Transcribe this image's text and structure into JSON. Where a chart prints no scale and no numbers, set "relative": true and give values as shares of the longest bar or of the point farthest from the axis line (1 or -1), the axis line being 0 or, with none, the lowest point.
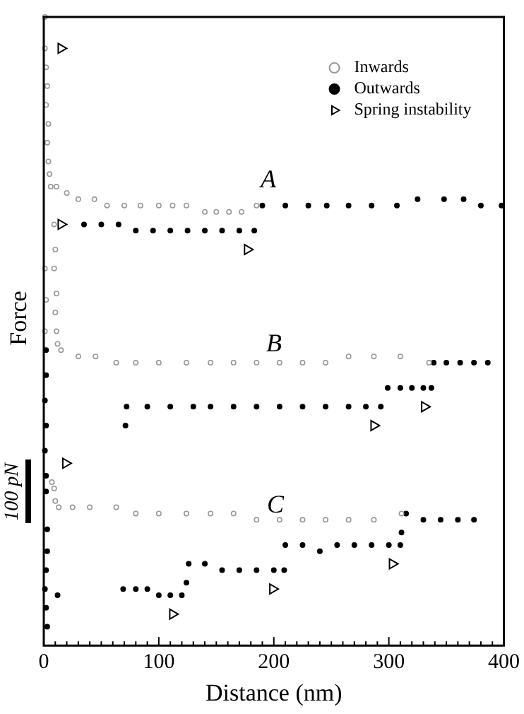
{
  "chart_data": {
    "type": "scatter",
    "xlabel": "Distance (nm)",
    "ylabel": "Force",
    "relative": true,
    "legend": "top right",
    "xlim": [
      0,
      400
    ],
    "xticks": [
      0,
      {
        "value": 10,
        "label": null
      },
      {
        "value": 20,
        "label": null
      },
      {
        "value": 30,
        "label": null
      },
      {
        "value": 40,
        "label": null
      },
      {
        "value": 50,
        "label": null
      },
      {
        "value": 60,
        "label": null
      },
      {
        "value": 70,
        "label": null
      },
      {
        "value": 80,
        "label": null
      },
      {
        "value": 90,
        "label": null
      },
      100,
      {
        "value": 110,
        "label": null
      },
      {
        "value": 120,
        "label": null
      },
      {
        "value": 130,
        "label": null
      },
      {
        "value": 140,
        "label": null
      },
      {
        "value": 150,
        "label": null
      },
      {
        "value": 160,
        "label": null
      },
      {
        "value": 170,
        "label": null
      },
      {
        "value": 180,
        "label": null
      },
      {
        "value": 190,
        "label": null
      },
      200,
      {
        "value": 210,
        "label": null
      },
      {
        "value": 220,
        "label": null
      },
      {
        "value": 230,
        "label": null
      },
      {
        "value": 240,
        "label": null
      },
      {
        "value": 250,
        "label": null
      },
      {
        "value": 260,
        "label": null
      },
      {
        "value": 270,
        "label": null
      },
      {
        "value": 280,
        "label": null
      },
      {
        "value": 290,
        "label": null
      },
      300,
      {
        "value": 310,
        "label": null
      },
      {
        "value": 320,
        "label": null
      },
      {
        "value": 330,
        "label": null
      },
      {
        "value": 340,
        "label": null
      },
      {
        "value": 350,
        "label": null
      },
      {
        "value": 360,
        "label": null
      },
      {
        "value": 370,
        "label": null
      },
      {
        "value": 380,
        "label": null
      },
      {
        "value": 390,
        "label": null
      },
      400
    ],
    "annotations": [
      "A",
      "B",
      "C",
      "100 pN"
    ],
    "series": [
      {
        "name": "Inwards",
        "color": "#999999",
        "marker": "circle",
        "x": [
          1,
          1,
          2,
          3,
          2,
          4,
          3,
          4,
          5,
          6,
          11,
          20,
          30,
          44,
          55,
          70,
          84,
          100,
          112,
          124,
          140,
          150,
          161,
          172,
          185,
          9,
          10,
          9,
          11,
          10,
          11,
          12,
          15,
          30,
          45,
          63,
          80,
          100,
          124,
          145,
          165,
          185,
          205,
          225,
          245,
          265,
          287,
          310,
          335,
          7,
          9,
          10,
          13,
          25,
          40,
          63,
          80,
          100,
          124,
          145,
          165,
          185,
          205,
          225,
          245,
          265,
          287,
          311,
          1,
          2,
          1
        ],
        "values": [
          1.0,
          0.95,
          0.92,
          0.89,
          0.86,
          0.83,
          0.8,
          0.77,
          0.75,
          0.73,
          0.73,
          0.72,
          0.71,
          0.71,
          0.7,
          0.7,
          0.7,
          0.7,
          0.7,
          0.7,
          0.69,
          0.69,
          0.69,
          0.69,
          0.7,
          0.67,
          0.63,
          0.6,
          0.56,
          0.53,
          0.5,
          0.48,
          0.47,
          0.46,
          0.46,
          0.45,
          0.45,
          0.45,
          0.45,
          0.45,
          0.45,
          0.45,
          0.45,
          0.45,
          0.45,
          0.46,
          0.46,
          0.46,
          0.45,
          0.26,
          0.25,
          0.23,
          0.22,
          0.22,
          0.22,
          0.22,
          0.21,
          0.21,
          0.21,
          0.21,
          0.21,
          0.2,
          0.2,
          0.2,
          0.2,
          0.2,
          0.2,
          0.21,
          0.6,
          0.55,
          0.5
        ]
      },
      {
        "name": "Outwards",
        "color": "#000000",
        "marker": "circle",
        "x": [
          190,
          210,
          230,
          246,
          265,
          285,
          307,
          325,
          348,
          365,
          380,
          398,
          35,
          50,
          65,
          80,
          95,
          110,
          125,
          140,
          155,
          170,
          183,
          339,
          350,
          362,
          374,
          386,
          72,
          90,
          110,
          130,
          145,
          165,
          185,
          205,
          225,
          245,
          265,
          280,
          293,
          71,
          299,
          310,
          320,
          330,
          337,
          315,
          330,
          345,
          360,
          374,
          69,
          80,
          90,
          100,
          110,
          120,
          124,
          126,
          140,
          155,
          170,
          185,
          200,
          209,
          210,
          225,
          240,
          255,
          270,
          285,
          300,
          310,
          311,
          2,
          2,
          1,
          2,
          1,
          2,
          2,
          3,
          3,
          2,
          1,
          2,
          3,
          12
        ],
        "values": [
          0.7,
          0.7,
          0.7,
          0.7,
          0.7,
          0.7,
          0.7,
          0.71,
          0.71,
          0.71,
          0.7,
          0.7,
          0.67,
          0.67,
          0.67,
          0.66,
          0.66,
          0.66,
          0.66,
          0.66,
          0.66,
          0.66,
          0.66,
          0.45,
          0.45,
          0.45,
          0.45,
          0.45,
          0.38,
          0.38,
          0.38,
          0.38,
          0.38,
          0.38,
          0.38,
          0.38,
          0.38,
          0.38,
          0.38,
          0.38,
          0.38,
          0.35,
          0.41,
          0.41,
          0.41,
          0.41,
          0.41,
          0.21,
          0.2,
          0.2,
          0.2,
          0.2,
          0.09,
          0.09,
          0.09,
          0.08,
          0.08,
          0.08,
          0.1,
          0.13,
          0.13,
          0.12,
          0.12,
          0.12,
          0.12,
          0.12,
          0.16,
          0.16,
          0.15,
          0.16,
          0.16,
          0.16,
          0.16,
          0.16,
          0.18,
          0.47,
          0.43,
          0.39,
          0.35,
          0.31,
          0.27,
          0.245,
          0.185,
          0.15,
          0.12,
          0.09,
          0.06,
          0.03,
          0.08
        ]
      },
      {
        "name": "Spring instability",
        "color": "#000000",
        "marker": "triangle",
        "x": [
          15,
          177,
          15,
          287,
          331,
          19,
          112,
          199,
          303
        ],
        "values": [
          0.95,
          0.63,
          0.67,
          0.35,
          0.38,
          0.29,
          0.05,
          0.09,
          0.13
        ]
      }
    ]
  }
}
